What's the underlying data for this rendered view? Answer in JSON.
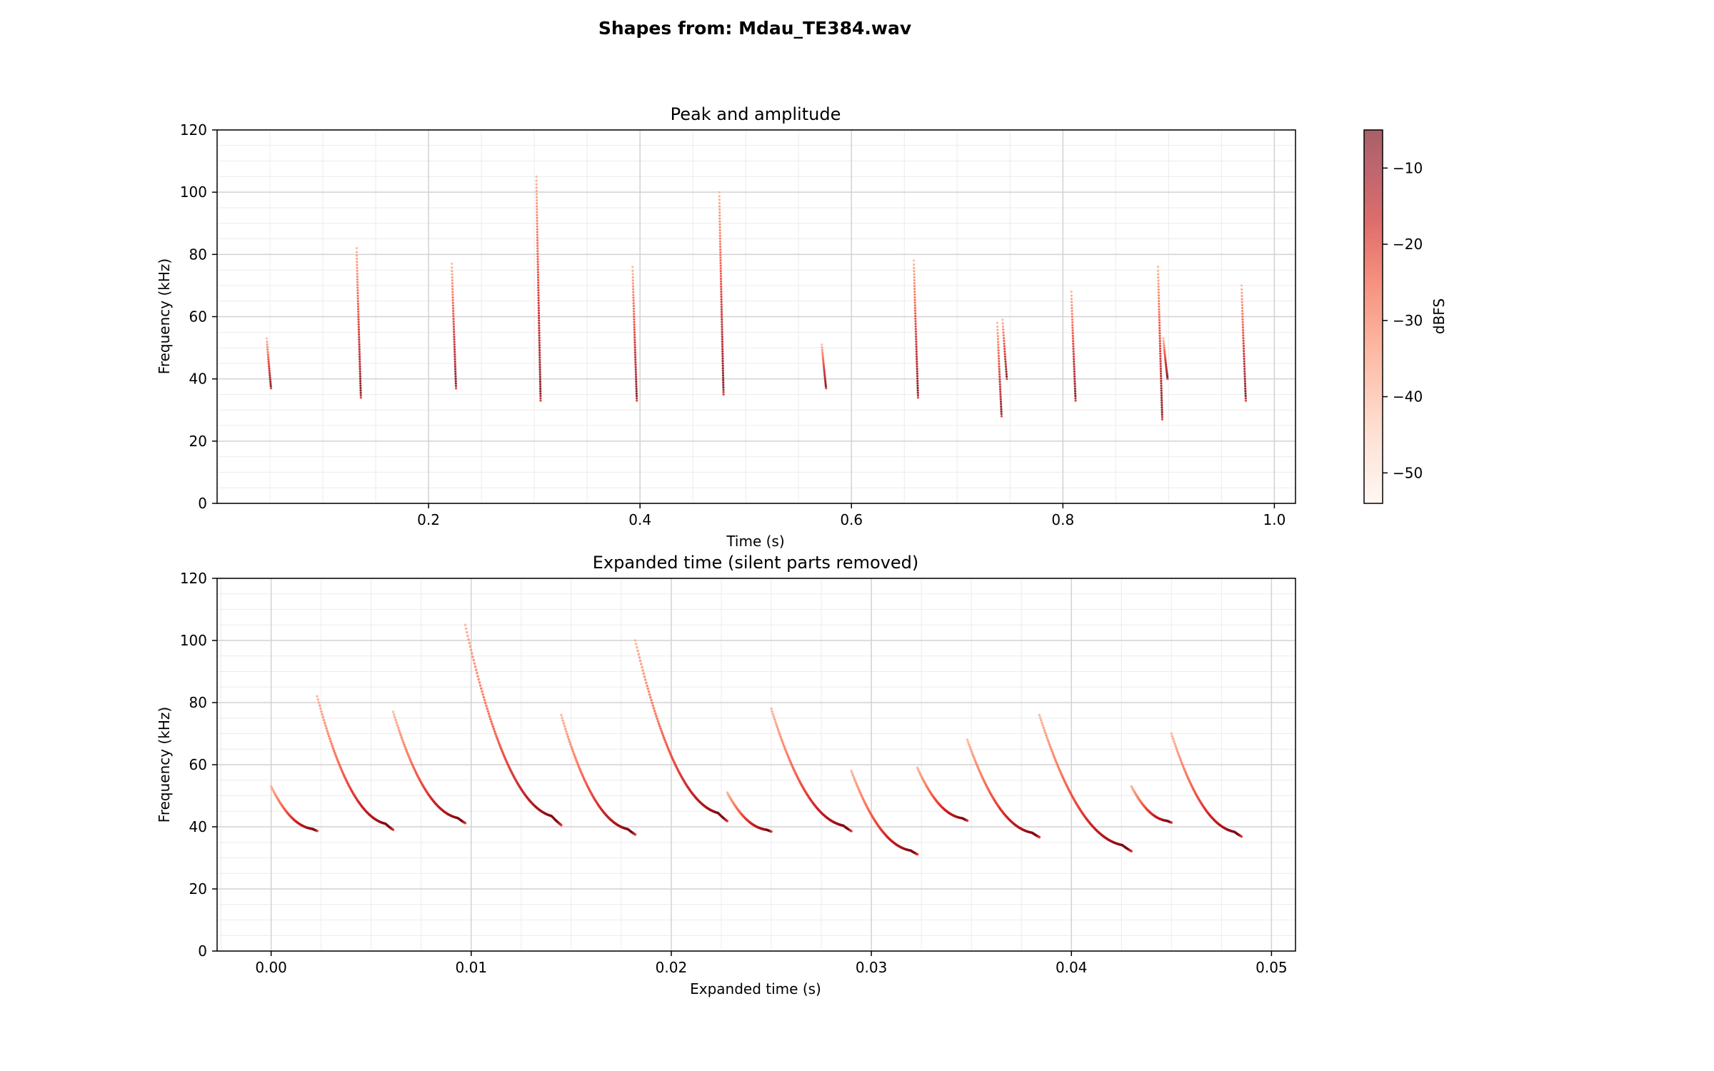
{
  "figure": {
    "title": "Shapes from: Mdau_TE384.wav"
  },
  "chart_data": [
    {
      "type": "scatter",
      "title": "Peak and amplitude",
      "xlabel": "Time (s)",
      "ylabel": "Frequency (kHz)",
      "xlim": [
        0.0,
        1.02
      ],
      "ylim": [
        0,
        120
      ],
      "xticks": [
        0.2,
        0.4,
        0.6,
        0.8,
        1.0
      ],
      "xtick_labels": [
        "0.2",
        "0.4",
        "0.6",
        "0.8",
        "1.0"
      ],
      "yticks": [
        0,
        20,
        40,
        60,
        80,
        100,
        120
      ],
      "ytick_labels": [
        "0",
        "20",
        "40",
        "60",
        "80",
        "100",
        "120"
      ],
      "grid": true,
      "colorbar": {
        "label": "dBFS",
        "range": [
          -54,
          -5
        ],
        "ticks": [
          -10,
          -20,
          -30,
          -40,
          -50
        ],
        "tick_labels": [
          "−10",
          "−20",
          "−30",
          "−40",
          "−50"
        ],
        "colormap": "Reds"
      },
      "calls": [
        {
          "t": 0.047,
          "f_start": 53,
          "f_end": 37
        },
        {
          "t": 0.132,
          "f_start": 82,
          "f_end": 34
        },
        {
          "t": 0.222,
          "f_start": 77,
          "f_end": 37
        },
        {
          "t": 0.302,
          "f_start": 105,
          "f_end": 33
        },
        {
          "t": 0.393,
          "f_start": 76,
          "f_end": 33
        },
        {
          "t": 0.475,
          "f_start": 100,
          "f_end": 35
        },
        {
          "t": 0.572,
          "f_start": 51,
          "f_end": 37
        },
        {
          "t": 0.659,
          "f_start": 78,
          "f_end": 34
        },
        {
          "t": 0.738,
          "f_start": 58,
          "f_end": 28
        },
        {
          "t": 0.743,
          "f_start": 59,
          "f_end": 40
        },
        {
          "t": 0.808,
          "f_start": 68,
          "f_end": 33
        },
        {
          "t": 0.89,
          "f_start": 76,
          "f_end": 27
        },
        {
          "t": 0.895,
          "f_start": 53,
          "f_end": 40
        },
        {
          "t": 0.969,
          "f_start": 70,
          "f_end": 33
        }
      ]
    },
    {
      "type": "scatter",
      "title": "Expanded time (silent parts removed)",
      "xlabel": "Expanded time (s)",
      "ylabel": "Frequency (kHz)",
      "xlim": [
        -0.0027,
        0.0512
      ],
      "ylim": [
        0,
        120
      ],
      "xticks": [
        0.0,
        0.01,
        0.02,
        0.03,
        0.04,
        0.05
      ],
      "xtick_labels": [
        "0.00",
        "0.01",
        "0.02",
        "0.03",
        "0.04",
        "0.05"
      ],
      "yticks": [
        0,
        20,
        40,
        60,
        80,
        100,
        120
      ],
      "ytick_labels": [
        "0",
        "20",
        "40",
        "60",
        "80",
        "100",
        "120"
      ],
      "grid": true,
      "calls": [
        {
          "t0": 0.0,
          "t1": 0.0023,
          "f_start": 53,
          "f_end": 37
        },
        {
          "t0": 0.0023,
          "t1": 0.0061,
          "f_start": 82,
          "f_end": 34
        },
        {
          "t0": 0.0061,
          "t1": 0.0097,
          "f_start": 77,
          "f_end": 37
        },
        {
          "t0": 0.0097,
          "t1": 0.0145,
          "f_start": 105,
          "f_end": 33
        },
        {
          "t0": 0.0145,
          "t1": 0.0182,
          "f_start": 76,
          "f_end": 33
        },
        {
          "t0": 0.0182,
          "t1": 0.0228,
          "f_start": 100,
          "f_end": 35
        },
        {
          "t0": 0.0228,
          "t1": 0.025,
          "f_start": 51,
          "f_end": 37
        },
        {
          "t0": 0.025,
          "t1": 0.029,
          "f_start": 78,
          "f_end": 34
        },
        {
          "t0": 0.029,
          "t1": 0.0323,
          "f_start": 58,
          "f_end": 28
        },
        {
          "t0": 0.0323,
          "t1": 0.0348,
          "f_start": 59,
          "f_end": 40
        },
        {
          "t0": 0.0348,
          "t1": 0.0384,
          "f_start": 68,
          "f_end": 33
        },
        {
          "t0": 0.0384,
          "t1": 0.043,
          "f_start": 76,
          "f_end": 27
        },
        {
          "t0": 0.043,
          "t1": 0.045,
          "f_start": 53,
          "f_end": 40
        },
        {
          "t0": 0.045,
          "t1": 0.0485,
          "f_start": 70,
          "f_end": 33
        }
      ]
    }
  ]
}
